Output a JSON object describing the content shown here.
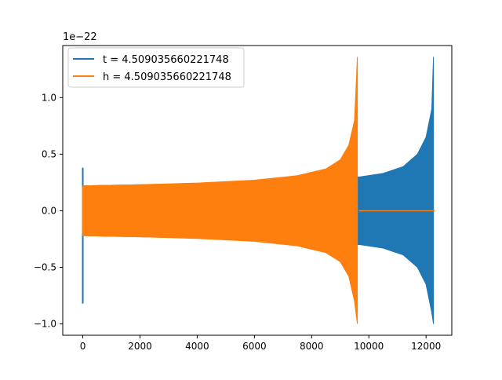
{
  "chart_data": {
    "type": "line",
    "title": "",
    "xlabel": "",
    "ylabel": "",
    "y_offset_label": "1e−22",
    "xlim": [
      -700,
      12900
    ],
    "ylim": [
      -1.1,
      1.46
    ],
    "x_ticks": [
      0,
      2000,
      4000,
      6000,
      8000,
      10000,
      12000
    ],
    "x_tick_labels": [
      "0",
      "2000",
      "4000",
      "6000",
      "8000",
      "10000",
      "12000"
    ],
    "y_ticks": [
      -1.0,
      -0.5,
      0.0,
      0.5,
      1.0
    ],
    "y_tick_labels": [
      "−1.0",
      "−0.5",
      "0.0",
      "0.5",
      "1.0"
    ],
    "grid": false,
    "legend_position": "top-left",
    "series": [
      {
        "name": "t = 4.509035660221748",
        "color": "#1f77b4",
        "pre_spike": [
          {
            "x": 0,
            "y": 0.38
          },
          {
            "x": 0,
            "y": -0.82
          }
        ],
        "envelope_upper": [
          {
            "x": 0,
            "y": 0.22
          },
          {
            "x": 2000,
            "y": 0.23
          },
          {
            "x": 4000,
            "y": 0.24
          },
          {
            "x": 6000,
            "y": 0.26
          },
          {
            "x": 8000,
            "y": 0.29
          },
          {
            "x": 9700,
            "y": 0.3
          },
          {
            "x": 10500,
            "y": 0.33
          },
          {
            "x": 11200,
            "y": 0.39
          },
          {
            "x": 11700,
            "y": 0.5
          },
          {
            "x": 12000,
            "y": 0.65
          },
          {
            "x": 12200,
            "y": 0.9
          },
          {
            "x": 12260,
            "y": 1.36
          }
        ],
        "envelope_lower": [
          {
            "x": 0,
            "y": -0.22
          },
          {
            "x": 2000,
            "y": -0.23
          },
          {
            "x": 4000,
            "y": -0.24
          },
          {
            "x": 6000,
            "y": -0.26
          },
          {
            "x": 8000,
            "y": -0.29
          },
          {
            "x": 9700,
            "y": -0.3
          },
          {
            "x": 10500,
            "y": -0.33
          },
          {
            "x": 11200,
            "y": -0.39
          },
          {
            "x": 11700,
            "y": -0.5
          },
          {
            "x": 12000,
            "y": -0.65
          },
          {
            "x": 12200,
            "y": -0.9
          },
          {
            "x": 12260,
            "y": -1.0
          }
        ],
        "tail": [
          {
            "x": 12280,
            "y": 0
          },
          {
            "x": 12300,
            "y": 0
          }
        ]
      },
      {
        "name": "h = 4.509035660221748",
        "color": "#ff7f0e",
        "pre_spike": [
          {
            "x": 0,
            "y": 0.21
          },
          {
            "x": 0,
            "y": -0.2
          }
        ],
        "envelope_upper": [
          {
            "x": 0,
            "y": 0.22
          },
          {
            "x": 2000,
            "y": 0.23
          },
          {
            "x": 4000,
            "y": 0.245
          },
          {
            "x": 6000,
            "y": 0.27
          },
          {
            "x": 7500,
            "y": 0.31
          },
          {
            "x": 8500,
            "y": 0.37
          },
          {
            "x": 9000,
            "y": 0.45
          },
          {
            "x": 9300,
            "y": 0.58
          },
          {
            "x": 9500,
            "y": 0.8
          },
          {
            "x": 9600,
            "y": 1.36
          }
        ],
        "envelope_lower": [
          {
            "x": 0,
            "y": -0.22
          },
          {
            "x": 2000,
            "y": -0.23
          },
          {
            "x": 4000,
            "y": -0.245
          },
          {
            "x": 6000,
            "y": -0.27
          },
          {
            "x": 7500,
            "y": -0.31
          },
          {
            "x": 8500,
            "y": -0.37
          },
          {
            "x": 9000,
            "y": -0.45
          },
          {
            "x": 9300,
            "y": -0.58
          },
          {
            "x": 9500,
            "y": -0.8
          },
          {
            "x": 9600,
            "y": -1.0
          }
        ],
        "tail": [
          {
            "x": 9650,
            "y": 0
          },
          {
            "x": 12300,
            "y": 0
          }
        ]
      }
    ]
  }
}
